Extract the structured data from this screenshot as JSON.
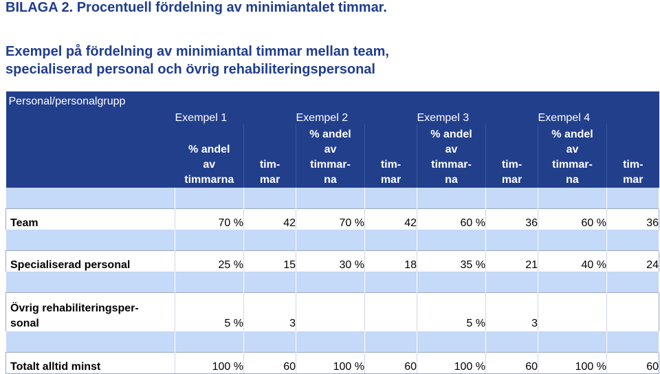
{
  "title": "BILAGA 2. Procentuell fördelning av minimiantalet timmar.",
  "subtitle_line1": "Exempel på fördelning av minimiantal timmar mellan team,",
  "subtitle_line2": "specialiserad personal och övrig rehabiliteringspersonal",
  "table": {
    "row_header": "Personal/personalgrupp",
    "groups": [
      "Exempel 1",
      "Exempel 2",
      "Exempel 3",
      "Exempel 4"
    ],
    "sub_headers": {
      "pct_ex1_lines": [
        "% andel",
        "av",
        "timmarna"
      ],
      "pct_lines": [
        "% andel",
        "av",
        "timmar-",
        "na"
      ],
      "hours_lines": [
        "tim-",
        "mar"
      ]
    },
    "rows": [
      {
        "label": "Team",
        "values": [
          "70 %",
          "42",
          "70 %",
          "42",
          "60 %",
          "36",
          "60 %",
          "36"
        ]
      },
      {
        "label": "Specialiserad personal",
        "values": [
          "25 %",
          "15",
          "30 %",
          "18",
          "35 %",
          "21",
          "40 %",
          "24"
        ]
      },
      {
        "label_line1": "Övrig rehabiliteringsper-",
        "label_line2": "sonal",
        "values": [
          "5 %",
          "3",
          "",
          "",
          "5 %",
          "3",
          "",
          ""
        ]
      },
      {
        "label": "Totalt alltid minst",
        "values": [
          "100 %",
          "60",
          "100 %",
          "60",
          "100 %",
          "60",
          "100 %",
          "60"
        ]
      }
    ]
  },
  "colors": {
    "header_bg": "#223f8c",
    "pale_row": "#c5d9f8",
    "title": "#1f3d8f"
  }
}
